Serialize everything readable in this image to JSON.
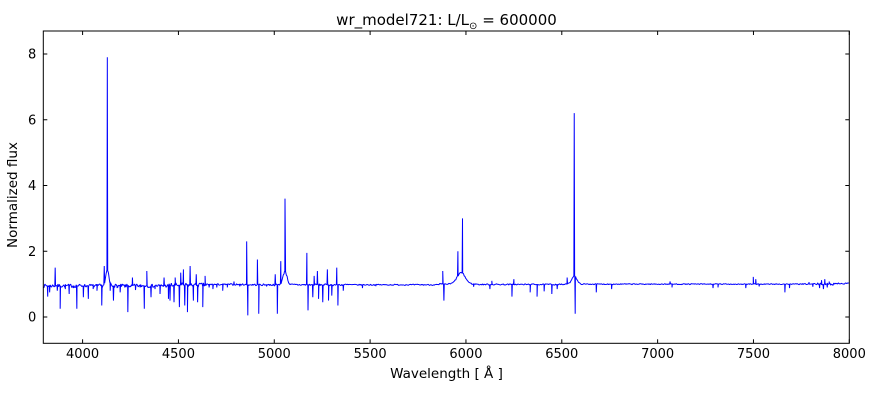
{
  "figure": {
    "title_prefix": "wr_model721: L/L",
    "title_sub": "⊙",
    "title_suffix": " = 600000"
  },
  "chart_data": {
    "type": "line",
    "title": "wr_model721: L/L⊙ = 600000",
    "xlabel": "Wavelength [ Å ]",
    "ylabel": "Normalized flux",
    "xlim": [
      3795,
      8000
    ],
    "ylim": [
      -0.8,
      8.7
    ],
    "xticks": [
      4000,
      4500,
      5000,
      5500,
      6000,
      6500,
      7000,
      7500,
      8000
    ],
    "yticks": [
      0,
      2,
      4,
      6,
      8
    ],
    "grid": false,
    "legend": false,
    "line_color": "#0000ff",
    "axis_color": "#000000",
    "background": "#ffffff",
    "continuum_flux": 1.0,
    "noise_regions": [
      {
        "from": 3795,
        "to": 4450,
        "base": 0.95,
        "amp": 0.055
      },
      {
        "from": 4450,
        "to": 4660,
        "base": 0.97,
        "amp": 0.07
      },
      {
        "from": 4660,
        "to": 4850,
        "base": 0.99,
        "amp": 0.025
      },
      {
        "from": 4850,
        "to": 5400,
        "base": 0.98,
        "amp": 0.03
      },
      {
        "from": 5400,
        "to": 5860,
        "base": 0.98,
        "amp": 0.018
      },
      {
        "from": 5860,
        "to": 6060,
        "base": 1.0,
        "amp": 0.02
      },
      {
        "from": 6060,
        "to": 6520,
        "base": 0.99,
        "amp": 0.02
      },
      {
        "from": 6520,
        "to": 7100,
        "base": 1.0,
        "amp": 0.015
      },
      {
        "from": 7100,
        "to": 7800,
        "base": 1.0,
        "amp": 0.015
      },
      {
        "from": 7800,
        "to": 7920,
        "base": 1.0,
        "amp": 0.04
      },
      {
        "from": 7920,
        "to": 8000,
        "base": 1.02,
        "amp": 0.02
      }
    ],
    "pedestals": [
      [
        4129,
        0.45,
        12
      ],
      [
        5056,
        0.4,
        15
      ],
      [
        5975,
        0.35,
        30
      ],
      [
        6565,
        0.25,
        18
      ]
    ],
    "features": [
      [
        3818,
        0.62
      ],
      [
        3828,
        0.75
      ],
      [
        3857,
        1.5
      ],
      [
        3868,
        0.8
      ],
      [
        3883,
        0.25
      ],
      [
        3910,
        0.85
      ],
      [
        3930,
        0.7
      ],
      [
        3952,
        0.88
      ],
      [
        3970,
        0.25
      ],
      [
        4004,
        0.6
      ],
      [
        4030,
        0.55
      ],
      [
        4055,
        0.85
      ],
      [
        4075,
        0.8
      ],
      [
        4100,
        0.35
      ],
      [
        4113,
        1.55
      ],
      [
        4129,
        7.9
      ],
      [
        4144,
        0.8
      ],
      [
        4161,
        0.5
      ],
      [
        4180,
        0.88
      ],
      [
        4196,
        0.75
      ],
      [
        4220,
        0.9
      ],
      [
        4236,
        0.15
      ],
      [
        4260,
        1.2
      ],
      [
        4276,
        0.82
      ],
      [
        4300,
        0.9
      ],
      [
        4322,
        0.25
      ],
      [
        4335,
        1.4
      ],
      [
        4357,
        0.6
      ],
      [
        4378,
        0.85
      ],
      [
        4404,
        0.7
      ],
      [
        4425,
        1.2
      ],
      [
        4448,
        0.55
      ],
      [
        4456,
        0.5
      ],
      [
        4477,
        0.45
      ],
      [
        4483,
        1.2
      ],
      [
        4505,
        0.3
      ],
      [
        4512,
        1.35
      ],
      [
        4526,
        1.45
      ],
      [
        4533,
        0.35
      ],
      [
        4547,
        0.15
      ],
      [
        4561,
        1.55
      ],
      [
        4578,
        0.5
      ],
      [
        4593,
        1.3
      ],
      [
        4600,
        0.45
      ],
      [
        4627,
        0.3
      ],
      [
        4639,
        1.25
      ],
      [
        4660,
        0.9
      ],
      [
        4680,
        0.85
      ],
      [
        4700,
        0.9
      ],
      [
        4731,
        0.8
      ],
      [
        4755,
        0.9
      ],
      [
        4790,
        1.08
      ],
      [
        4820,
        0.93
      ],
      [
        4856,
        2.3
      ],
      [
        4862,
        0.05
      ],
      [
        4912,
        1.75
      ],
      [
        4919,
        0.1
      ],
      [
        4960,
        0.93
      ],
      [
        5005,
        1.3
      ],
      [
        5016,
        0.1
      ],
      [
        5034,
        1.7
      ],
      [
        5056,
        3.6
      ],
      [
        5170,
        1.95
      ],
      [
        5176,
        0.2
      ],
      [
        5201,
        0.6
      ],
      [
        5208,
        1.25
      ],
      [
        5225,
        1.4
      ],
      [
        5231,
        0.55
      ],
      [
        5253,
        0.45
      ],
      [
        5277,
        1.45
      ],
      [
        5283,
        0.5
      ],
      [
        5300,
        0.65
      ],
      [
        5326,
        1.5
      ],
      [
        5332,
        0.35
      ],
      [
        5360,
        0.8
      ],
      [
        5460,
        0.88
      ],
      [
        5530,
        0.94
      ],
      [
        5879,
        1.4
      ],
      [
        5885,
        0.5
      ],
      [
        5958,
        2.0
      ],
      [
        5982,
        3.0
      ],
      [
        6040,
        0.92
      ],
      [
        6125,
        0.85
      ],
      [
        6135,
        1.1
      ],
      [
        6240,
        0.62
      ],
      [
        6250,
        1.15
      ],
      [
        6335,
        0.75
      ],
      [
        6371,
        0.62
      ],
      [
        6408,
        0.78
      ],
      [
        6448,
        0.7
      ],
      [
        6476,
        0.85
      ],
      [
        6528,
        1.2
      ],
      [
        6565,
        6.2
      ],
      [
        6570,
        0.1
      ],
      [
        6680,
        0.75
      ],
      [
        6760,
        0.85
      ],
      [
        7065,
        1.08
      ],
      [
        7075,
        0.9
      ],
      [
        7289,
        0.88
      ],
      [
        7315,
        0.9
      ],
      [
        7460,
        0.88
      ],
      [
        7499,
        1.22
      ],
      [
        7512,
        1.15
      ],
      [
        7530,
        0.93
      ],
      [
        7664,
        0.75
      ],
      [
        7688,
        0.88
      ],
      [
        7790,
        1.06
      ],
      [
        7810,
        0.92
      ],
      [
        7845,
        0.88
      ],
      [
        7855,
        1.12
      ],
      [
        7865,
        0.85
      ],
      [
        7872,
        1.15
      ],
      [
        7885,
        0.9
      ],
      [
        7895,
        1.08
      ]
    ]
  }
}
